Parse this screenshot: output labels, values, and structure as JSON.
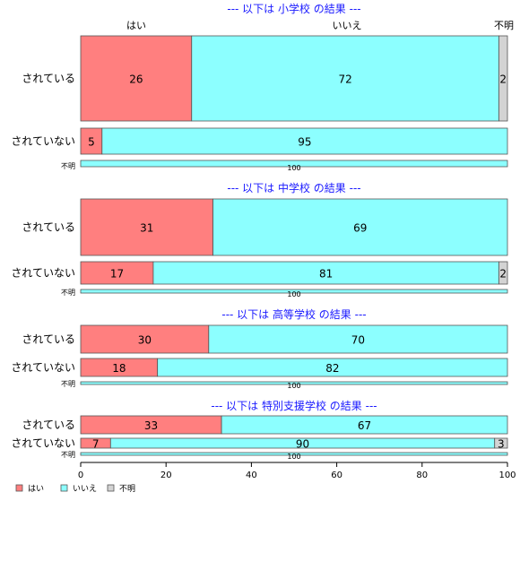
{
  "colors": {
    "hai": "#ff7f7f",
    "iie": "#8cffff",
    "fumei": "#d3d3d3",
    "title": "#1a1aff",
    "border": "#666666"
  },
  "chart_data": {
    "type": "bar",
    "orientation": "horizontal-stacked-percent",
    "top_category_labels": [
      "はい",
      "いいえ",
      "不明"
    ],
    "legend": [
      "はい",
      "いいえ",
      "不明"
    ],
    "legend_position": "bottom-left",
    "xlim": [
      0,
      100
    ],
    "xticks": [
      "0",
      "20",
      "40",
      "60",
      "80",
      "100"
    ],
    "grid": false,
    "sections": [
      {
        "title": "--- 以下は 小学校 の結果 ---",
        "rows": [
          {
            "label": "されている",
            "values": [
              26,
              72,
              2
            ],
            "labels": [
              "26",
              "72",
              "2"
            ]
          },
          {
            "label": "されていない",
            "values": [
              5,
              95,
              0
            ],
            "labels": [
              "5",
              "95",
              ""
            ]
          },
          {
            "label": "不明",
            "values": [
              0,
              100,
              0
            ],
            "labels": [
              "",
              "100",
              ""
            ]
          }
        ]
      },
      {
        "title": "--- 以下は 中学校 の結果 ---",
        "rows": [
          {
            "label": "されている",
            "values": [
              31,
              69,
              0
            ],
            "labels": [
              "31",
              "69",
              ""
            ]
          },
          {
            "label": "されていない",
            "values": [
              17,
              81,
              2
            ],
            "labels": [
              "17",
              "81",
              "2"
            ]
          },
          {
            "label": "不明",
            "values": [
              0,
              100,
              0
            ],
            "labels": [
              "",
              "100",
              ""
            ]
          }
        ]
      },
      {
        "title": "--- 以下は 高等学校 の結果 ---",
        "rows": [
          {
            "label": "されている",
            "values": [
              30,
              70,
              0
            ],
            "labels": [
              "30",
              "70",
              ""
            ]
          },
          {
            "label": "されていない",
            "values": [
              18,
              82,
              0
            ],
            "labels": [
              "18",
              "82",
              ""
            ]
          },
          {
            "label": "不明",
            "values": [
              0,
              100,
              0
            ],
            "labels": [
              "",
              "100",
              ""
            ]
          }
        ]
      },
      {
        "title": "--- 以下は 特別支援学校 の結果 ---",
        "rows": [
          {
            "label": "されている",
            "values": [
              33,
              67,
              0
            ],
            "labels": [
              "33",
              "67",
              ""
            ]
          },
          {
            "label": "されていない",
            "values": [
              7,
              90,
              3
            ],
            "labels": [
              "7",
              "90",
              "3"
            ]
          },
          {
            "label": "不明",
            "values": [
              0,
              100,
              0
            ],
            "labels": [
              "",
              "100",
              ""
            ]
          }
        ]
      }
    ]
  }
}
